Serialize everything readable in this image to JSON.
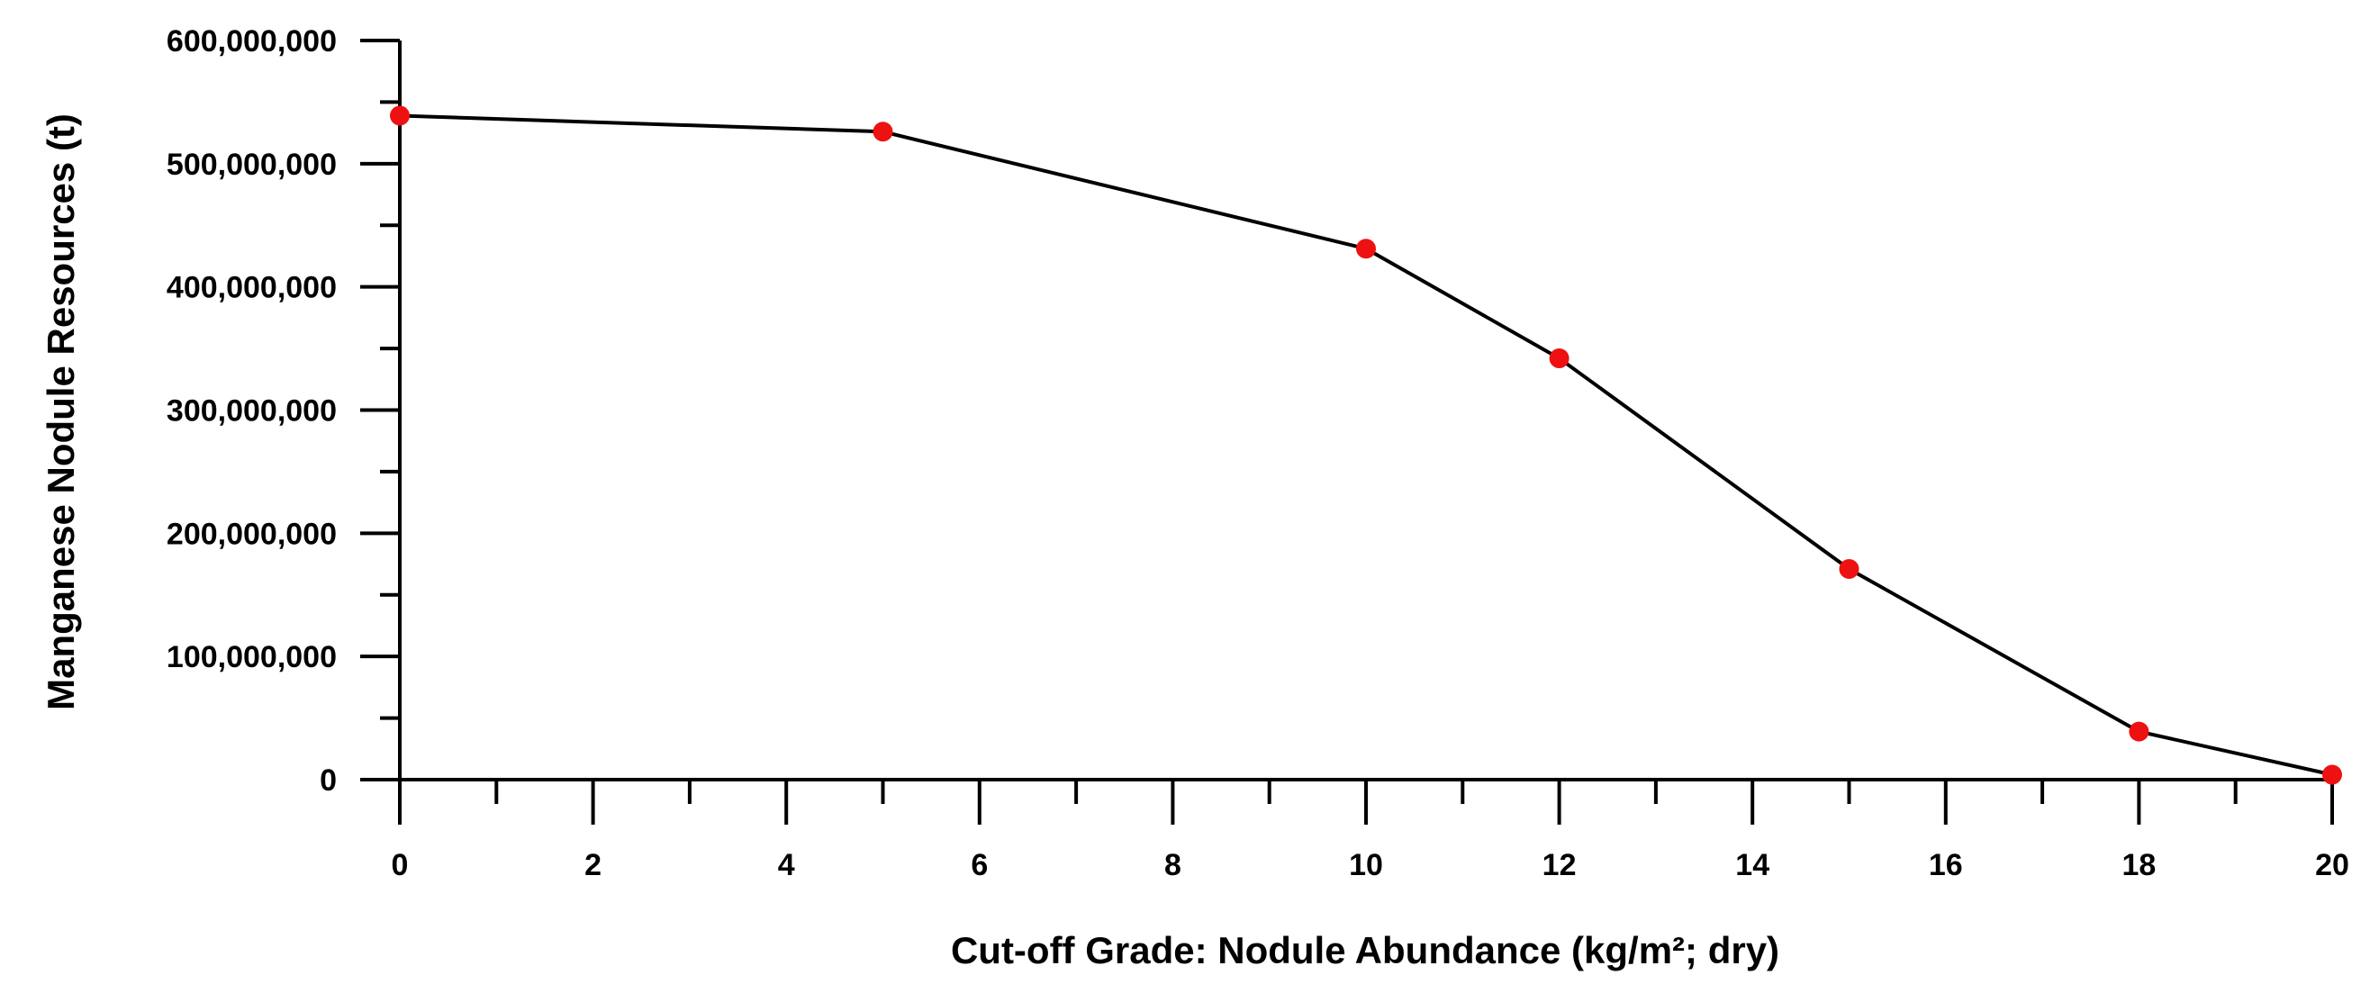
{
  "chart_data": {
    "type": "line",
    "title": "",
    "xlabel": "Cut-off Grade: Nodule Abundance (kg/m²; dry)",
    "ylabel": "Manganese Nodule Resources (t)",
    "xlim": [
      0,
      20
    ],
    "ylim": [
      0,
      600000000
    ],
    "x_ticks": [
      0,
      2,
      4,
      6,
      8,
      10,
      12,
      14,
      16,
      18,
      20
    ],
    "x_tick_labels": [
      "0",
      "2",
      "4",
      "6",
      "8",
      "10",
      "12",
      "14",
      "16",
      "18",
      "20"
    ],
    "x_minor_ticks": [
      1,
      3,
      5,
      7,
      9,
      11,
      13,
      15,
      17,
      19
    ],
    "y_ticks": [
      0,
      100000000,
      200000000,
      300000000,
      400000000,
      500000000,
      600000000
    ],
    "y_tick_labels": [
      "0",
      "100,000,000",
      "200,000,000",
      "300,000,000",
      "400,000,000",
      "500,000,000",
      "600,000,000"
    ],
    "y_minor_ticks": [
      50000000,
      150000000,
      250000000,
      350000000,
      450000000,
      550000000
    ],
    "grid": false,
    "legend": "none",
    "series": [
      {
        "x": [
          0,
          5,
          10,
          12,
          15,
          18,
          20
        ],
        "y": [
          539000000,
          526000000,
          431000000,
          342000000,
          171000000,
          39000000,
          4000000
        ],
        "line_color": "#000000",
        "marker_color": "#ee1111"
      }
    ]
  }
}
